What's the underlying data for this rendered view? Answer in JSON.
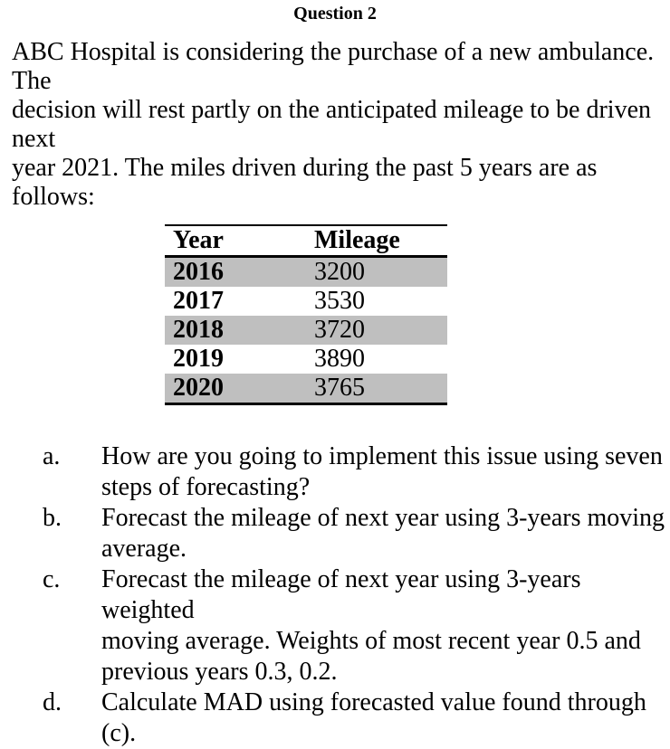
{
  "title": "Question 2",
  "intro": "ABC Hospital is considering the purchase of a new ambulance. The\ndecision will rest partly on the anticipated mileage to be driven next\nyear 2021. The miles driven during the past 5 years are as follows:",
  "table": {
    "headers": [
      "Year",
      "Mileage"
    ],
    "rows": [
      [
        "2016",
        "3200"
      ],
      [
        "2017",
        "3530"
      ],
      [
        "2018",
        "3720"
      ],
      [
        "2019",
        "3890"
      ],
      [
        "2020",
        "3765"
      ]
    ],
    "shade_color": "#bfbfbf"
  },
  "questions": [
    {
      "label": "a.",
      "text": "How are you going to implement this issue using seven\nsteps of forecasting?"
    },
    {
      "label": "b.",
      "text": "Forecast the mileage of next year using 3-years moving\naverage."
    },
    {
      "label": "c.",
      "text": "Forecast the mileage of next year using 3-years weighted\nmoving average. Weights of most recent year 0.5 and\nprevious years 0.3, 0.2."
    },
    {
      "label": "d.",
      "text": "Calculate MAD using forecasted value found through (c)."
    }
  ]
}
